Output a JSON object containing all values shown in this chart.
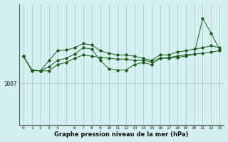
{
  "title": "Graphe pression niveau de la mer (hPa)",
  "background_color": "#d4f0f0",
  "grid_color": "#b0b0b0",
  "line_color": "#1a5c1a",
  "ylabel_text": "1007",
  "ylabel_value": 1007,
  "x_labels": [
    "0",
    "1",
    "2",
    "3",
    "4",
    "",
    "6",
    "7",
    "8",
    "9",
    "10",
    "11",
    "12",
    "13",
    "14",
    "15",
    "16",
    "17",
    "18",
    "19",
    "20",
    "21",
    "22",
    "23"
  ],
  "hours": [
    0,
    1,
    2,
    3,
    4,
    5,
    6,
    7,
    8,
    9,
    10,
    11,
    12,
    13,
    14,
    15,
    16,
    17,
    18,
    19,
    20,
    21,
    22,
    23
  ],
  "series1": [
    1013.5,
    1010.2,
    1010.0,
    1010.0,
    1011.5,
    1012.0,
    1013.0,
    1013.8,
    1013.5,
    1013.2,
    1013.0,
    1012.8,
    1012.8,
    1012.5,
    1012.5,
    1012.2,
    1013.0,
    1013.2,
    1013.5,
    1013.8,
    1014.0,
    1014.2,
    1014.5,
    1014.8
  ],
  "series2": [
    1013.5,
    1010.0,
    1010.0,
    1011.0,
    1012.5,
    1013.0,
    1014.0,
    1015.5,
    1015.2,
    1012.5,
    1010.5,
    1010.2,
    1010.2,
    1011.5,
    1012.0,
    1011.5,
    1013.0,
    1013.0,
    1013.2,
    1013.5,
    1014.0,
    1022.5,
    1019.0,
    1015.0
  ],
  "series3": [
    1013.5,
    1010.2,
    1010.0,
    1012.5,
    1014.8,
    1015.0,
    1015.5,
    1016.5,
    1016.2,
    1014.8,
    1014.2,
    1013.8,
    1013.8,
    1013.5,
    1013.0,
    1012.5,
    1013.8,
    1013.8,
    1014.5,
    1014.8,
    1015.2,
    1015.5,
    1016.0,
    1015.5
  ],
  "ylim_min": 997,
  "ylim_max": 1026,
  "figwidth": 3.2,
  "figheight": 2.0,
  "dpi": 100
}
